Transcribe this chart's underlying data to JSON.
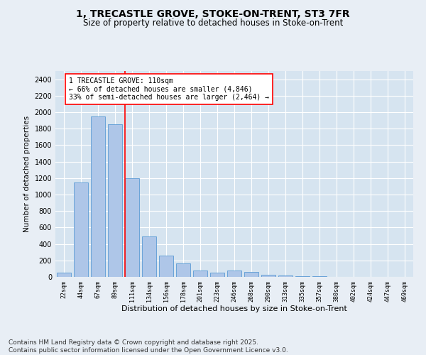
{
  "title_line1": "1, TRECASTLE GROVE, STOKE-ON-TRENT, ST3 7FR",
  "title_line2": "Size of property relative to detached houses in Stoke-on-Trent",
  "xlabel": "Distribution of detached houses by size in Stoke-on-Trent",
  "ylabel": "Number of detached properties",
  "categories": [
    "22sqm",
    "44sqm",
    "67sqm",
    "89sqm",
    "111sqm",
    "134sqm",
    "156sqm",
    "178sqm",
    "201sqm",
    "223sqm",
    "246sqm",
    "268sqm",
    "290sqm",
    "313sqm",
    "335sqm",
    "357sqm",
    "380sqm",
    "402sqm",
    "424sqm",
    "447sqm",
    "469sqm"
  ],
  "values": [
    50,
    1150,
    1950,
    1850,
    1200,
    490,
    260,
    160,
    80,
    50,
    80,
    60,
    30,
    20,
    10,
    5,
    0,
    0,
    0,
    0,
    0
  ],
  "bar_color": "#aec6e8",
  "bar_edge_color": "#5b9bd5",
  "vline_color": "red",
  "vline_position": 3.575,
  "annotation_text": "1 TRECASTLE GROVE: 110sqm\n← 66% of detached houses are smaller (4,846)\n33% of semi-detached houses are larger (2,464) →",
  "annotation_box_color": "red",
  "annotation_box_facecolor": "white",
  "ylim": [
    0,
    2500
  ],
  "yticks": [
    0,
    200,
    400,
    600,
    800,
    1000,
    1200,
    1400,
    1600,
    1800,
    2000,
    2200,
    2400
  ],
  "background_color": "#e8eef5",
  "plot_background": "#d6e4f0",
  "footnote": "Contains HM Land Registry data © Crown copyright and database right 2025.\nContains public sector information licensed under the Open Government Licence v3.0.",
  "title_fontsize": 10,
  "subtitle_fontsize": 8.5,
  "annotation_fontsize": 7,
  "footnote_fontsize": 6.5,
  "ylabel_fontsize": 7.5,
  "xlabel_fontsize": 8
}
